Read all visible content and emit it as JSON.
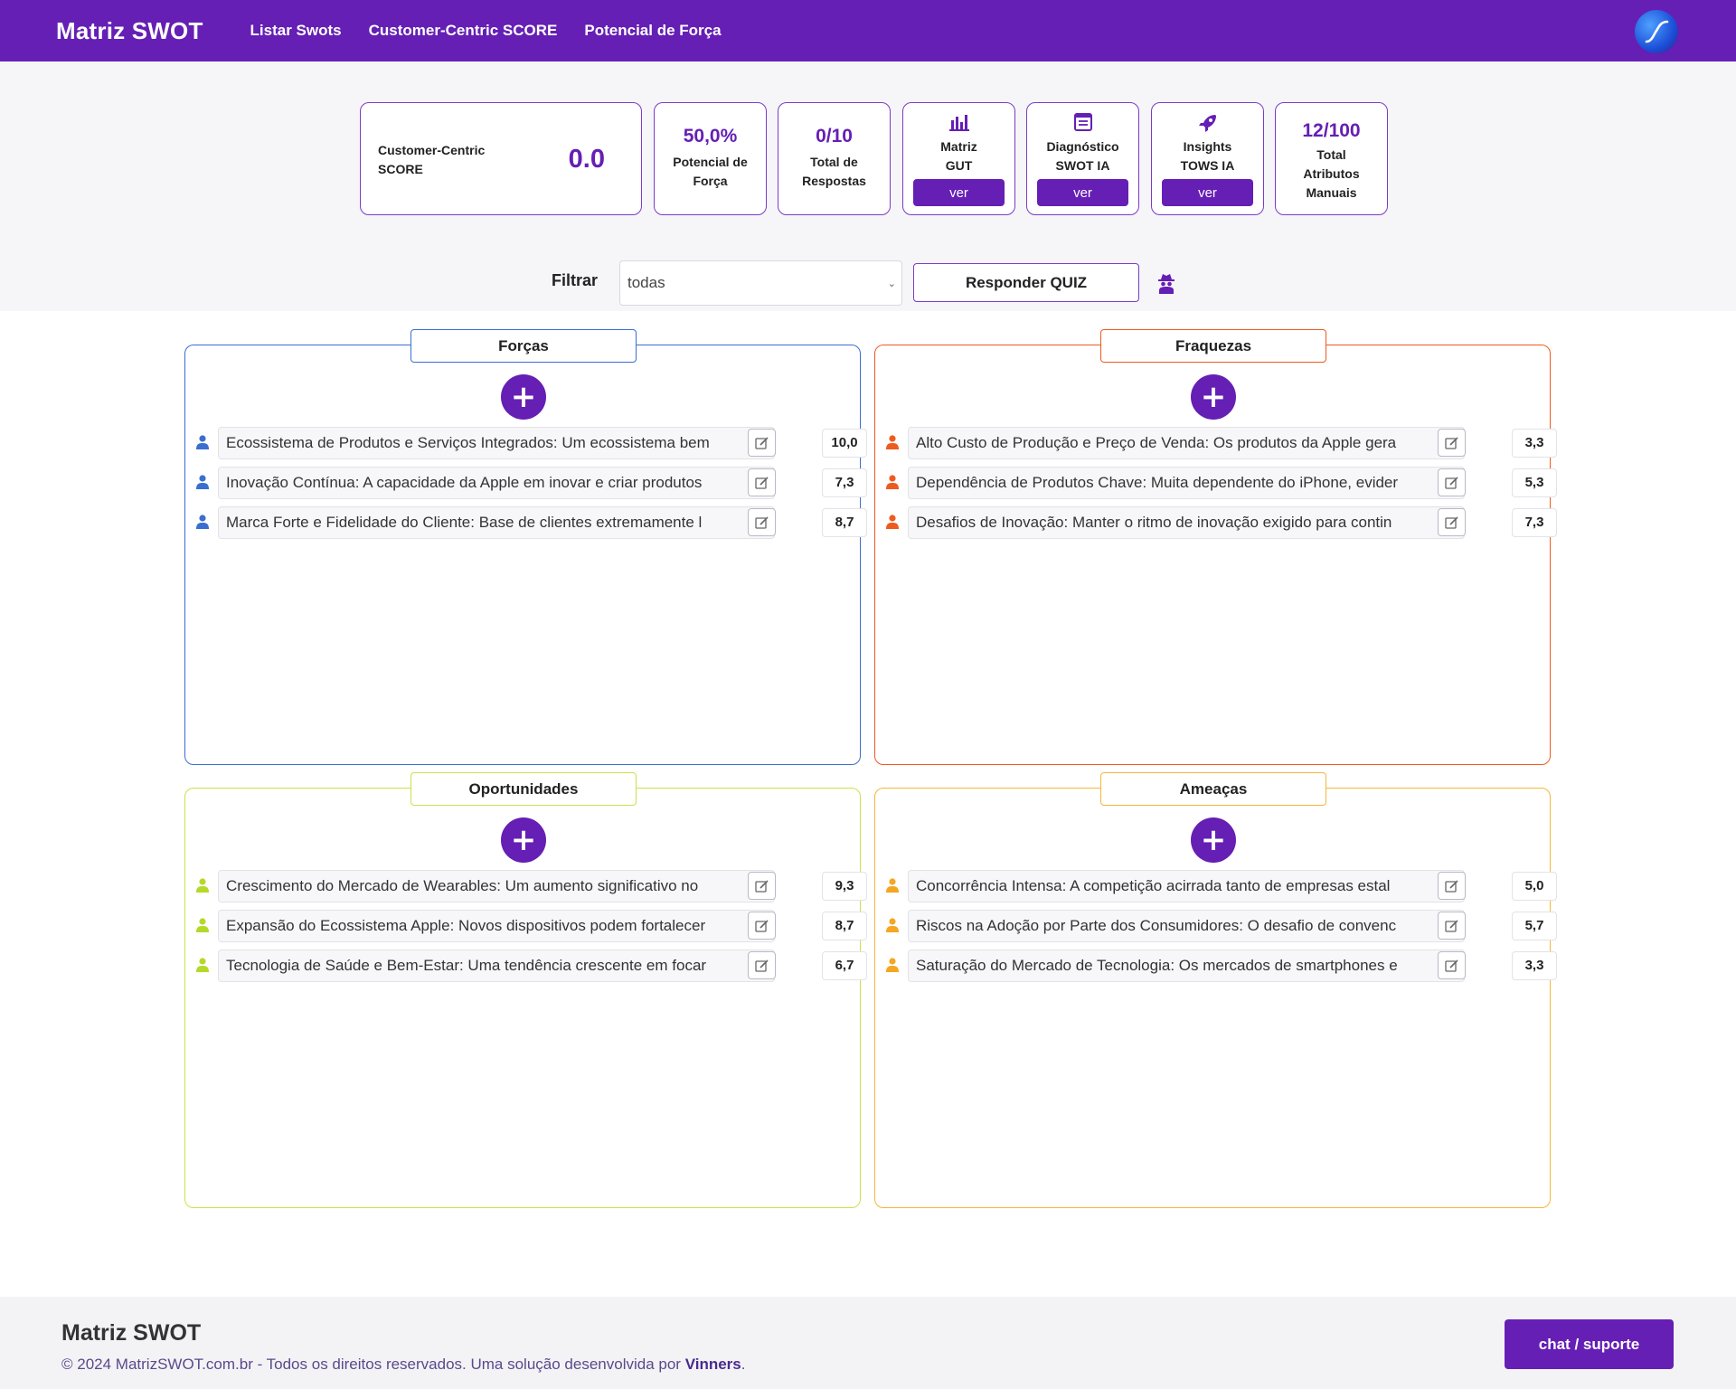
{
  "navbar": {
    "brand": "Matriz SWOT",
    "links": [
      "Listar Swots",
      "Customer-Centric SCORE",
      "Potencial de Força"
    ],
    "logo_icon": "s-curve-logo-icon"
  },
  "stats": {
    "score_label": "Customer-Centric SCORE",
    "score_value": "0.0",
    "potencial_value": "50,0%",
    "potencial_label": "Potencial de Força",
    "respostas_value": "0/10",
    "respostas_label": "Total de Respostas",
    "gut_label": "Matriz GUT",
    "diag_label": "Diagnóstico SWOT IA",
    "tows_label": "Insights TOWS IA",
    "ver_label": "ver",
    "atributos_value": "12/100",
    "atributos_label": "Total Atributos Manuais"
  },
  "filter": {
    "label": "Filtrar",
    "selected": "todas",
    "quiz_label": "Responder QUIZ"
  },
  "quadrants": {
    "forcas": {
      "title": "Forças",
      "color": "#3a6fd0",
      "items": [
        {
          "text": "Ecossistema de Produtos e Serviços Integrados: Um ecossistema bem",
          "score": "10,0"
        },
        {
          "text": "Inovação Contínua: A capacidade da Apple em inovar e criar produtos",
          "score": "7,3"
        },
        {
          "text": "Marca Forte e Fidelidade do Cliente: Base de clientes extremamente l",
          "score": "8,7"
        }
      ]
    },
    "fraquezas": {
      "title": "Fraquezas",
      "color": "#ef5a1f",
      "items": [
        {
          "text": "Alto Custo de Produção e Preço de Venda: Os produtos da Apple gera",
          "score": "3,3"
        },
        {
          "text": "Dependência de Produtos Chave: Muita dependente do iPhone, evider",
          "score": "5,3"
        },
        {
          "text": "Desafios de Inovação: Manter o ritmo de inovação exigido para contin",
          "score": "7,3"
        }
      ]
    },
    "oportunidades": {
      "title": "Oportunidades",
      "color": "#b4d92a",
      "items": [
        {
          "text": "Crescimento do Mercado de Wearables: Um aumento significativo no",
          "score": "9,3"
        },
        {
          "text": "Expansão do Ecossistema Apple: Novos dispositivos podem fortalecer",
          "score": "8,7"
        },
        {
          "text": "Tecnologia de Saúde e Bem-Estar: Uma tendência crescente em focar",
          "score": "6,7"
        }
      ]
    },
    "ameacas": {
      "title": "Ameaças",
      "color": "#f5a623",
      "items": [
        {
          "text": "Concorrência Intensa: A competição acirrada tanto de empresas estal",
          "score": "5,0"
        },
        {
          "text": "Riscos na Adoção por Parte dos Consumidores: O desafio de convenc",
          "score": "5,7"
        },
        {
          "text": "Saturação do Mercado de Tecnologia: Os mercados de smartphones e",
          "score": "3,3"
        }
      ]
    }
  },
  "footer": {
    "brand": "Matriz SWOT",
    "copy_prefix": "© 2024 MatrizSWOT.com.br - Todos os direitos reservados. Uma solução desenvolvida por",
    "copy_company": "Vinners",
    "copy_suffix": ".",
    "chat_label": "chat / suporte"
  }
}
